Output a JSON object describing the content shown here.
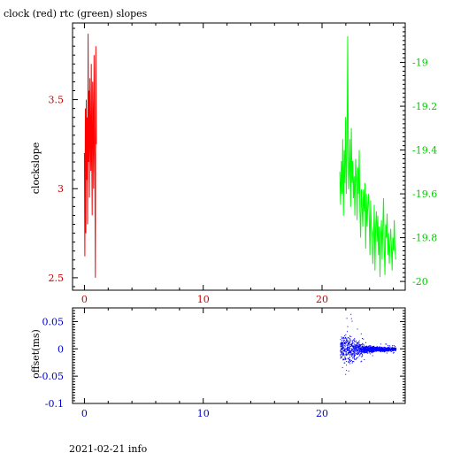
{
  "chart_data": [
    {
      "type": "line",
      "title": "clock (red) rtc (green) slopes",
      "ylabel": "clockslope",
      "xlim": [
        -1,
        27
      ],
      "xticks": [
        "0",
        "10",
        "20"
      ],
      "colors": {
        "left_axis": "#cc0000",
        "right_axis": "#00cc00",
        "x_axis": "#cc0000"
      },
      "left_axis": {
        "ylim": [
          2.43,
          3.93
        ],
        "ticks": [
          "2.5",
          "3",
          "3.5"
        ]
      },
      "right_axis": {
        "ylim": [
          -20.04,
          -18.82
        ],
        "ticks": [
          "-20",
          "-19.8",
          "-19.6",
          "-19.4",
          "-19.2",
          "-19"
        ]
      },
      "series": [
        {
          "axis": "left",
          "color": "#ff0000",
          "x_range": [
            0.0,
            1.0
          ],
          "values": [
            3.2,
            2.62,
            3.45,
            2.75,
            3.5,
            3.05,
            3.4,
            2.8,
            3.87,
            3.15,
            3.55,
            2.95,
            3.62,
            3.3,
            3.1,
            3.7,
            3.2,
            2.85,
            3.6,
            3.4,
            3.0,
            3.75,
            3.35,
            3.05,
            2.5,
            3.8,
            3.25
          ]
        },
        {
          "axis": "right",
          "color": "#00ff00",
          "x_range": [
            21.5,
            26.2
          ],
          "values": [
            -19.5,
            -19.65,
            -19.45,
            -19.6,
            -19.35,
            -19.7,
            -19.4,
            -19.55,
            -19.25,
            -19.6,
            -19.42,
            -18.88,
            -19.58,
            -19.48,
            -19.35,
            -19.66,
            -19.3,
            -19.55,
            -19.45,
            -19.62,
            -19.52,
            -19.7,
            -19.44,
            -19.56,
            -19.72,
            -19.48,
            -19.6,
            -19.4,
            -19.68,
            -19.8,
            -19.58,
            -19.66,
            -19.75,
            -19.58,
            -19.68,
            -19.55,
            -19.85,
            -19.6,
            -19.75,
            -19.65,
            -19.6,
            -19.7,
            -19.88,
            -19.63,
            -19.75,
            -19.78,
            -19.92,
            -19.82,
            -19.65,
            -19.95,
            -19.75,
            -19.68,
            -19.82,
            -19.7,
            -19.88,
            -19.75,
            -19.98,
            -19.8,
            -19.72,
            -19.9,
            -19.75,
            -19.62,
            -19.85,
            -19.97,
            -19.74,
            -19.8,
            -19.69,
            -19.88,
            -19.78,
            -19.92,
            -19.82,
            -19.76,
            -19.84,
            -19.95,
            -19.8,
            -19.86,
            -19.72,
            -19.85,
            -19.9
          ]
        }
      ]
    },
    {
      "type": "scatter",
      "ylabel": "offset(ms)",
      "xlim": [
        -1,
        27
      ],
      "ylim": [
        -0.1,
        0.075
      ],
      "xticks": [
        "0",
        "10",
        "20"
      ],
      "yticks": [
        "-0.1",
        "-0.05",
        "0",
        "0.05"
      ],
      "colors": {
        "axis": "#0000cc",
        "points": "#0000ff"
      },
      "series": [
        {
          "name": "offset",
          "x_range": [
            21.5,
            26.2
          ],
          "envelope_breaks": [
            21.5,
            22.0,
            22.5,
            23.0,
            23.5,
            24.5,
            25.5,
            26.2
          ],
          "envelope_halfwidth": [
            0.035,
            0.045,
            0.04,
            0.025,
            0.012,
            0.008,
            0.006,
            0.004
          ]
        }
      ]
    }
  ],
  "footer": {
    "text": "2021-02-21 info"
  }
}
